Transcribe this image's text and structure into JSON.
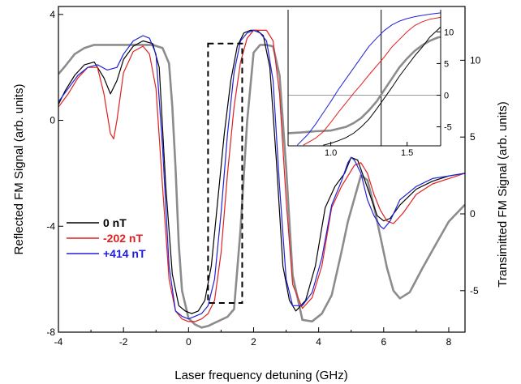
{
  "chart_data": {
    "type": "line",
    "xlabel": "Laser frequency detuning (GHz)",
    "ylabel_left": "Reflected FM Signal (arb. units)",
    "ylabel_right": "Transimitted FM Signal (arb. units)",
    "xlim": [
      -4,
      8.5
    ],
    "ylim_left": [
      -8,
      4.3
    ],
    "ylim_right": [
      -7.7,
      13.5
    ],
    "x_ticks": [
      -4,
      -2,
      0,
      2,
      4,
      6,
      8
    ],
    "y_ticks_left": [
      -8,
      -4,
      0,
      4
    ],
    "y_ticks_right": [
      -5,
      0,
      5,
      10
    ],
    "legend": {
      "position": "lower-left",
      "entries": [
        {
          "label": "0 nT",
          "color": "#000000"
        },
        {
          "label": "-202 nT",
          "color": "#e02020"
        },
        {
          "label": "+414 nT",
          "color": "#2020d8"
        }
      ]
    },
    "zoom_box_x": [
      0.6,
      1.65
    ],
    "zoom_box_y": [
      -6.9,
      2.9
    ],
    "series": [
      {
        "name": "0 nT",
        "color": "#000000",
        "x": [
          -4,
          -3.8,
          -3.5,
          -3.2,
          -2.9,
          -2.6,
          -2.4,
          -2.2,
          -2.0,
          -1.7,
          -1.4,
          -1.1,
          -0.9,
          -0.7,
          -0.5,
          -0.3,
          -0.1,
          0.1,
          0.3,
          0.5,
          0.7,
          0.9,
          1.1,
          1.3,
          1.5,
          1.7,
          1.9,
          2.1,
          2.3,
          2.5,
          2.7,
          2.9,
          3.1,
          3.3,
          3.6,
          3.9,
          4.2,
          4.5,
          4.8,
          5.0,
          5.2,
          5.4,
          5.6,
          5.8,
          6.0,
          6.2,
          6.5,
          7.0,
          7.5,
          8.0,
          8.5
        ],
        "y": [
          0.6,
          1.1,
          1.7,
          2.1,
          2.2,
          1.6,
          1.0,
          1.5,
          2.3,
          2.8,
          3.0,
          2.9,
          2.0,
          -2.5,
          -5.8,
          -7.0,
          -7.2,
          -7.3,
          -7.2,
          -6.8,
          -5.5,
          -3.0,
          -0.5,
          1.5,
          2.8,
          3.3,
          3.4,
          3.4,
          3.2,
          2.0,
          -1.5,
          -5.5,
          -6.8,
          -7.2,
          -6.8,
          -5.5,
          -3.3,
          -2.5,
          -2.0,
          -1.4,
          -1.5,
          -2.2,
          -2.9,
          -3.6,
          -3.8,
          -3.7,
          -3.2,
          -2.6,
          -2.3,
          -2.1,
          -2.0
        ]
      },
      {
        "name": "-202 nT",
        "color": "#e02020",
        "x": [
          -4,
          -3.7,
          -3.4,
          -3.1,
          -2.8,
          -2.6,
          -2.4,
          -2.3,
          -2.2,
          -2.0,
          -1.7,
          -1.4,
          -1.2,
          -1.0,
          -0.8,
          -0.6,
          -0.4,
          -0.2,
          0.0,
          0.2,
          0.4,
          0.6,
          0.8,
          1.0,
          1.2,
          1.4,
          1.6,
          1.8,
          2.0,
          2.2,
          2.4,
          2.6,
          2.8,
          3.0,
          3.2,
          3.5,
          3.8,
          4.1,
          4.4,
          4.7,
          4.9,
          5.1,
          5.3,
          5.5,
          5.7,
          5.9,
          6.1,
          6.3,
          6.6,
          7.0,
          7.5,
          8.0,
          8.5
        ],
        "y": [
          0.5,
          1.0,
          1.6,
          2.0,
          2.0,
          1.0,
          -0.5,
          -0.7,
          0.0,
          1.8,
          2.6,
          2.8,
          2.5,
          1.2,
          -2.5,
          -6.0,
          -7.2,
          -7.5,
          -7.6,
          -7.6,
          -7.5,
          -7.3,
          -6.8,
          -5.0,
          -2.0,
          0.5,
          2.2,
          3.1,
          3.4,
          3.4,
          3.4,
          3.0,
          1.0,
          -3.0,
          -6.2,
          -7.1,
          -6.7,
          -5.5,
          -3.3,
          -2.5,
          -2.1,
          -1.7,
          -1.6,
          -2.0,
          -2.8,
          -3.4,
          -3.8,
          -3.9,
          -3.5,
          -2.8,
          -2.4,
          -2.2,
          -2.0
        ]
      },
      {
        "name": "+414 nT",
        "color": "#2020d8",
        "x": [
          -4,
          -3.7,
          -3.4,
          -3.1,
          -2.8,
          -2.5,
          -2.2,
          -2.0,
          -1.7,
          -1.4,
          -1.2,
          -1.0,
          -0.8,
          -0.6,
          -0.4,
          -0.2,
          0.0,
          0.2,
          0.4,
          0.6,
          0.8,
          1.0,
          1.2,
          1.4,
          1.6,
          1.8,
          2.0,
          2.2,
          2.4,
          2.6,
          2.8,
          3.0,
          3.2,
          3.5,
          3.8,
          4.1,
          4.4,
          4.7,
          4.9,
          5.0,
          5.1,
          5.3,
          5.5,
          5.7,
          5.9,
          6.0,
          6.2,
          6.5,
          7.0,
          7.5,
          8.0,
          8.5
        ],
        "y": [
          0.7,
          1.2,
          1.7,
          2.0,
          2.1,
          1.9,
          2.0,
          2.5,
          3.0,
          3.2,
          3.1,
          2.5,
          -1.0,
          -5.5,
          -7.2,
          -7.4,
          -7.5,
          -7.4,
          -7.3,
          -7.0,
          -6.0,
          -3.5,
          -0.5,
          1.8,
          3.0,
          3.3,
          3.4,
          3.3,
          3.0,
          1.5,
          -2.5,
          -6.0,
          -7.0,
          -7.0,
          -6.5,
          -5.2,
          -3.2,
          -2.3,
          -1.6,
          -1.4,
          -1.5,
          -2.0,
          -3.0,
          -3.6,
          -4.0,
          -4.1,
          -3.8,
          -3.0,
          -2.5,
          -2.2,
          -2.1,
          -2.0
        ]
      },
      {
        "name": "",
        "color": "#8c8c8c",
        "axis": "right",
        "x": [
          -4,
          -3.8,
          -3.5,
          -3.2,
          -2.9,
          -2.6,
          -2.3,
          -2.0,
          -1.7,
          -1.4,
          -1.1,
          -0.8,
          -0.6,
          -0.5,
          -0.4,
          -0.3,
          -0.2,
          0.0,
          0.2,
          0.4,
          0.6,
          0.8,
          1.0,
          1.2,
          1.4,
          1.6,
          1.8,
          2.0,
          2.2,
          2.4,
          2.6,
          2.8,
          3.0,
          3.2,
          3.5,
          3.8,
          4.1,
          4.4,
          4.7,
          4.9,
          5.1,
          5.3,
          5.5,
          5.7,
          5.9,
          6.1,
          6.3,
          6.5,
          6.8,
          7.2,
          7.6,
          8.0,
          8.5
        ],
        "y": [
          9.1,
          9.6,
          10.4,
          10.8,
          11.0,
          11.0,
          11.0,
          11.0,
          11.0,
          11.0,
          11.0,
          10.8,
          9.8,
          7.0,
          3.0,
          -2.0,
          -5.0,
          -6.8,
          -7.2,
          -7.4,
          -7.3,
          -7.1,
          -6.9,
          -6.7,
          -6.2,
          -1.0,
          6.0,
          10.5,
          11.0,
          11.0,
          10.9,
          9.0,
          3.0,
          -4.0,
          -6.9,
          -7.0,
          -6.5,
          -5.3,
          -2.5,
          -0.5,
          1.0,
          2.5,
          2.2,
          0.5,
          -1.5,
          -3.5,
          -5.0,
          -5.5,
          -5.1,
          -3.5,
          -2.0,
          -0.5,
          0.6
        ]
      }
    ],
    "inset": {
      "x_ticks": [
        1.0,
        1.5
      ],
      "y_ticks": [
        -5,
        0,
        5,
        10
      ],
      "xlim": [
        0.72,
        1.72
      ],
      "ylim": [
        -8,
        13.5
      ],
      "vline_x": 1.33,
      "hline_y": 0,
      "series": [
        {
          "name": "0 nT",
          "color": "#000000",
          "x": [
            0.95,
            1.0,
            1.05,
            1.1,
            1.15,
            1.2,
            1.25,
            1.3,
            1.35,
            1.4,
            1.45,
            1.5,
            1.55,
            1.6,
            1.65,
            1.7,
            1.72
          ],
          "y": [
            -7.9,
            -7.6,
            -7.2,
            -6.7,
            -6.0,
            -5.0,
            -3.8,
            -2.2,
            -0.5,
            1.2,
            3.0,
            4.6,
            6.2,
            7.6,
            9.2,
            10.3,
            10.8
          ]
        },
        {
          "name": "-202 nT",
          "color": "#e02020",
          "x": [
            0.82,
            0.9,
            0.95,
            1.0,
            1.05,
            1.1,
            1.15,
            1.2,
            1.25,
            1.3,
            1.35,
            1.4,
            1.45,
            1.5,
            1.55,
            1.6,
            1.65,
            1.72
          ],
          "y": [
            -7.9,
            -6.8,
            -5.8,
            -4.3,
            -2.7,
            -1.2,
            0.3,
            1.7,
            3.2,
            4.6,
            6.0,
            7.6,
            8.8,
            10.0,
            11.0,
            11.6,
            12.0,
            12.3
          ]
        },
        {
          "name": "+414 nT",
          "color": "#2020d8",
          "x": [
            0.78,
            0.85,
            0.9,
            0.95,
            1.0,
            1.05,
            1.1,
            1.15,
            1.2,
            1.25,
            1.3,
            1.35,
            1.4,
            1.45,
            1.5,
            1.55,
            1.6,
            1.65,
            1.72
          ],
          "y": [
            -7.9,
            -6.2,
            -4.6,
            -2.8,
            -1.0,
            0.9,
            2.6,
            4.3,
            6.0,
            7.7,
            9.0,
            10.2,
            11.1,
            11.7,
            12.1,
            12.4,
            12.6,
            12.8,
            13.0
          ]
        },
        {
          "name": "",
          "color": "#8c8c8c",
          "x": [
            0.72,
            0.8,
            0.9,
            1.0,
            1.05,
            1.1,
            1.15,
            1.2,
            1.25,
            1.3,
            1.35,
            1.4,
            1.45,
            1.5,
            1.55,
            1.6,
            1.65,
            1.7,
            1.72
          ],
          "y": [
            -6.0,
            -5.9,
            -5.7,
            -5.6,
            -5.3,
            -5.0,
            -4.4,
            -3.6,
            -2.4,
            -1.0,
            0.8,
            2.6,
            4.4,
            5.8,
            7.0,
            7.9,
            8.6,
            9.1,
            9.2
          ]
        }
      ]
    }
  }
}
